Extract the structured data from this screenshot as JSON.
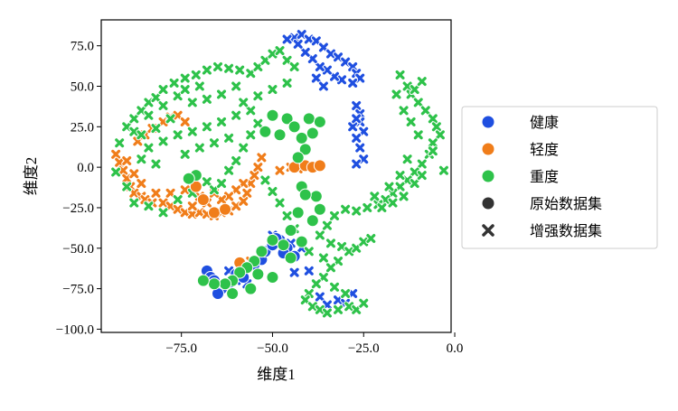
{
  "chart_data": {
    "type": "scatter",
    "title": "",
    "xlabel": "维度1",
    "ylabel": "维度2",
    "xlim": [
      -97,
      -1
    ],
    "ylim": [
      -102,
      91
    ],
    "xticks": [
      -75.0,
      -50.0,
      -25.0,
      0.0
    ],
    "xtick_labels": [
      "−75.0",
      "−50.0",
      "−25.0",
      "0.0"
    ],
    "yticks": [
      75.0,
      50.0,
      25.0,
      0.0,
      -25.0,
      -50.0,
      -75.0,
      -100.0
    ],
    "ytick_labels": [
      "75.0",
      "50.0",
      "25.0",
      "0.0",
      "−25.0",
      "−50.0",
      "−75.0",
      "−100.0"
    ],
    "grid": false,
    "legend_position": "outside-right",
    "legend": [
      {
        "label": "健康",
        "marker": "circle",
        "color": "#1f4fe0"
      },
      {
        "label": "轻度",
        "marker": "circle",
        "color": "#f07d1a"
      },
      {
        "label": "重度",
        "marker": "circle",
        "color": "#2ec24a"
      },
      {
        "label": "原始数据集",
        "marker": "circle",
        "color": "#333333"
      },
      {
        "label": "增强数据集",
        "marker": "cross",
        "color": "#333333"
      }
    ],
    "series": [
      {
        "name": "健康",
        "color": "#1f4fe0",
        "original": [
          [
            -68,
            -64
          ],
          [
            -67,
            -68
          ],
          [
            -66,
            -70
          ],
          [
            -64,
            -75
          ],
          [
            -65,
            -78
          ],
          [
            -62,
            -72
          ],
          [
            -60,
            -66
          ],
          [
            -58,
            -68
          ],
          [
            -55,
            -60
          ],
          [
            -53,
            -57
          ],
          [
            -52,
            -52
          ],
          [
            -50,
            -48
          ],
          [
            -48,
            -45
          ],
          [
            -46,
            -50
          ],
          [
            -44,
            -55
          ],
          [
            -47,
            -53
          ],
          [
            -49,
            -44
          ]
        ],
        "augmented": [
          [
            -44,
            80
          ],
          [
            -42,
            82
          ],
          [
            -40,
            79
          ],
          [
            -38,
            78
          ],
          [
            -36,
            74
          ],
          [
            -34,
            70
          ],
          [
            -32,
            68
          ],
          [
            -30,
            65
          ],
          [
            -28,
            62
          ],
          [
            -27,
            58
          ],
          [
            -26,
            55
          ],
          [
            -28,
            52
          ],
          [
            -31,
            54
          ],
          [
            -33,
            56
          ],
          [
            -35,
            60
          ],
          [
            -37,
            62
          ],
          [
            -39,
            67
          ],
          [
            -41,
            71
          ],
          [
            -43,
            76
          ],
          [
            -46,
            79
          ],
          [
            -38,
            55
          ],
          [
            -36,
            50
          ],
          [
            -27,
            38
          ],
          [
            -26,
            33
          ],
          [
            -26,
            28
          ],
          [
            -25,
            22
          ],
          [
            -27,
            18
          ],
          [
            -26,
            12
          ],
          [
            -25,
            5
          ],
          [
            -27,
            2
          ],
          [
            -28,
            25
          ],
          [
            -27,
            30
          ],
          [
            -62,
            -64
          ],
          [
            -60,
            -70
          ],
          [
            -65,
            -74
          ],
          [
            -57,
            -72
          ],
          [
            -50,
            -42
          ],
          [
            -45,
            -47
          ],
          [
            -42,
            -50
          ],
          [
            -44,
            -65
          ],
          [
            -40,
            -64
          ],
          [
            -37,
            -80
          ],
          [
            -35,
            -85
          ],
          [
            -32,
            -82
          ],
          [
            -30,
            -84
          ],
          [
            -28,
            -78
          ]
        ]
      },
      {
        "name": "轻度",
        "color": "#f07d1a",
        "original": [
          [
            -71,
            -12
          ],
          [
            -69,
            -20
          ],
          [
            -66,
            -28
          ],
          [
            -63,
            -26
          ],
          [
            -59,
            -59
          ],
          [
            -44,
            0
          ],
          [
            -41,
            1
          ],
          [
            -39,
            0
          ],
          [
            -37,
            1
          ]
        ],
        "augmented": [
          [
            -93,
            8
          ],
          [
            -92,
            3
          ],
          [
            -91,
            -2
          ],
          [
            -90,
            -7
          ],
          [
            -89,
            -12
          ],
          [
            -88,
            -16
          ],
          [
            -86,
            -18
          ],
          [
            -85,
            -20
          ],
          [
            -83,
            -22
          ],
          [
            -80,
            -22
          ],
          [
            -78,
            -24
          ],
          [
            -76,
            -26
          ],
          [
            -74,
            -28
          ],
          [
            -72,
            -29
          ],
          [
            -70,
            -28
          ],
          [
            -68,
            -29
          ],
          [
            -66,
            -30
          ],
          [
            -64,
            -28
          ],
          [
            -62,
            -27
          ],
          [
            -60,
            -24
          ],
          [
            -58,
            -21
          ],
          [
            -57,
            -16
          ],
          [
            -56,
            -10
          ],
          [
            -55,
            -5
          ],
          [
            -54,
            0
          ],
          [
            -53,
            6
          ],
          [
            -58,
            -10
          ],
          [
            -60,
            -14
          ],
          [
            -62,
            -18
          ],
          [
            -64,
            -20
          ],
          [
            -66,
            -16
          ],
          [
            -68,
            -22
          ],
          [
            -70,
            -18
          ],
          [
            -74,
            -14
          ],
          [
            -78,
            -16
          ],
          [
            -82,
            -16
          ],
          [
            -86,
            -10
          ],
          [
            -88,
            -4
          ],
          [
            -90,
            4
          ],
          [
            -87,
            16
          ],
          [
            -85,
            20
          ],
          [
            -83,
            24
          ],
          [
            -80,
            28
          ],
          [
            -78,
            31
          ],
          [
            -76,
            32
          ],
          [
            -74,
            28
          ],
          [
            -72,
            -24
          ],
          [
            -56,
            -58
          ],
          [
            -45,
            0
          ],
          [
            -43,
            -1
          ],
          [
            -48,
            -2
          ]
        ]
      },
      {
        "name": "重度",
        "color": "#2ec24a",
        "original": [
          [
            -52,
            22
          ],
          [
            -50,
            32
          ],
          [
            -48,
            20
          ],
          [
            -46,
            30
          ],
          [
            -44,
            25
          ],
          [
            -42,
            18
          ],
          [
            -40,
            30
          ],
          [
            -39,
            21
          ],
          [
            -37,
            28
          ],
          [
            -41,
            11
          ],
          [
            -43,
            6
          ],
          [
            -38,
            -18
          ],
          [
            -42,
            -12
          ],
          [
            -41,
            -17
          ],
          [
            -37,
            -26
          ],
          [
            -39,
            -33
          ],
          [
            -43,
            -28
          ],
          [
            -45,
            -39
          ],
          [
            -47,
            -48
          ],
          [
            -50,
            -45
          ],
          [
            -53,
            -52
          ],
          [
            -55,
            -58
          ],
          [
            -57,
            -62
          ],
          [
            -59,
            -65
          ],
          [
            -61,
            -70
          ],
          [
            -63,
            -72
          ],
          [
            -66,
            -72
          ],
          [
            -69,
            -70
          ],
          [
            -71,
            -5
          ],
          [
            -73,
            -7
          ],
          [
            -56,
            -75
          ],
          [
            -61,
            -78
          ],
          [
            -54,
            -66
          ],
          [
            -50,
            -68
          ],
          [
            -45,
            -56
          ],
          [
            -42,
            -46
          ]
        ],
        "augmented": [
          [
            -90,
            25
          ],
          [
            -88,
            30
          ],
          [
            -86,
            35
          ],
          [
            -84,
            40
          ],
          [
            -82,
            43
          ],
          [
            -80,
            48
          ],
          [
            -77,
            52
          ],
          [
            -74,
            55
          ],
          [
            -71,
            57
          ],
          [
            -68,
            60
          ],
          [
            -65,
            62
          ],
          [
            -62,
            61
          ],
          [
            -59,
            60
          ],
          [
            -56,
            58
          ],
          [
            -54,
            62
          ],
          [
            -52,
            66
          ],
          [
            -50,
            70
          ],
          [
            -48,
            72
          ],
          [
            -46,
            66
          ],
          [
            -44,
            62
          ],
          [
            -60,
            50
          ],
          [
            -64,
            45
          ],
          [
            -68,
            42
          ],
          [
            -72,
            40
          ],
          [
            -76,
            44
          ],
          [
            -80,
            38
          ],
          [
            -84,
            32
          ],
          [
            -88,
            22
          ],
          [
            -92,
            15
          ],
          [
            -93,
            -3
          ],
          [
            -90,
            -12
          ],
          [
            -88,
            -22
          ],
          [
            -84,
            -24
          ],
          [
            -80,
            -28
          ],
          [
            -76,
            -20
          ],
          [
            -72,
            -16
          ],
          [
            -68,
            -9
          ],
          [
            -66,
            -14
          ],
          [
            -64,
            -10
          ],
          [
            -62,
            -2
          ],
          [
            -60,
            4
          ],
          [
            -58,
            12
          ],
          [
            -56,
            20
          ],
          [
            -54,
            27
          ],
          [
            -56,
            35
          ],
          [
            -60,
            32
          ],
          [
            -64,
            28
          ],
          [
            -68,
            25
          ],
          [
            -72,
            22
          ],
          [
            -76,
            20
          ],
          [
            -80,
            16
          ],
          [
            -84,
            12
          ],
          [
            -86,
            5
          ],
          [
            -82,
            2
          ],
          [
            -74,
            8
          ],
          [
            -70,
            12
          ],
          [
            -66,
            15
          ],
          [
            -62,
            18
          ],
          [
            -58,
            40
          ],
          [
            -54,
            44
          ],
          [
            -50,
            48
          ],
          [
            -46,
            52
          ],
          [
            -70,
            50
          ],
          [
            -74,
            48
          ],
          [
            -78,
            30
          ],
          [
            -82,
            24
          ],
          [
            -86,
            20
          ],
          [
            -15,
            57
          ],
          [
            -13,
            50
          ],
          [
            -12,
            45
          ],
          [
            -10,
            40
          ],
          [
            -8,
            35
          ],
          [
            -6,
            30
          ],
          [
            -5,
            25
          ],
          [
            -4,
            20
          ],
          [
            -6,
            15
          ],
          [
            -7,
            8
          ],
          [
            -9,
            2
          ],
          [
            -11,
            -3
          ],
          [
            -13,
            -8
          ],
          [
            -15,
            -12
          ],
          [
            -17,
            -16
          ],
          [
            -19,
            -20
          ],
          [
            -21,
            -23
          ],
          [
            -24,
            -25
          ],
          [
            -27,
            -27
          ],
          [
            -30,
            -26
          ],
          [
            -33,
            -30
          ],
          [
            -35,
            -36
          ],
          [
            -37,
            -42
          ],
          [
            -34,
            -47
          ],
          [
            -31,
            -49
          ],
          [
            -29,
            -52
          ],
          [
            -27,
            -50
          ],
          [
            -25,
            -46
          ],
          [
            -23,
            -44
          ],
          [
            -20,
            -25
          ],
          [
            -17,
            -22
          ],
          [
            -14,
            -18
          ],
          [
            -11,
            -10
          ],
          [
            -9,
            -5
          ],
          [
            -13,
            5
          ],
          [
            -15,
            -5
          ],
          [
            -10,
            20
          ],
          [
            -12,
            28
          ],
          [
            -14,
            35
          ],
          [
            -11,
            48
          ],
          [
            -9,
            53
          ],
          [
            -16,
            45
          ],
          [
            -6,
            10
          ],
          [
            -3,
            -2
          ],
          [
            -18,
            -12
          ],
          [
            -22,
            -18
          ],
          [
            -32,
            -58
          ],
          [
            -34,
            -62
          ],
          [
            -36,
            -68
          ],
          [
            -38,
            -72
          ],
          [
            -40,
            -78
          ],
          [
            -41,
            -82
          ],
          [
            -39,
            -86
          ],
          [
            -37,
            -88
          ],
          [
            -35,
            -90
          ],
          [
            -32,
            -88
          ],
          [
            -29,
            -86
          ],
          [
            -27,
            -88
          ],
          [
            -25,
            -84
          ],
          [
            -30,
            -78
          ],
          [
            -33,
            -74
          ],
          [
            -36,
            -56
          ],
          [
            -40,
            -52
          ],
          [
            -44,
            -38
          ],
          [
            -46,
            -30
          ],
          [
            -48,
            -22
          ],
          [
            -50,
            -15
          ],
          [
            -52,
            -8
          ]
        ]
      }
    ]
  }
}
